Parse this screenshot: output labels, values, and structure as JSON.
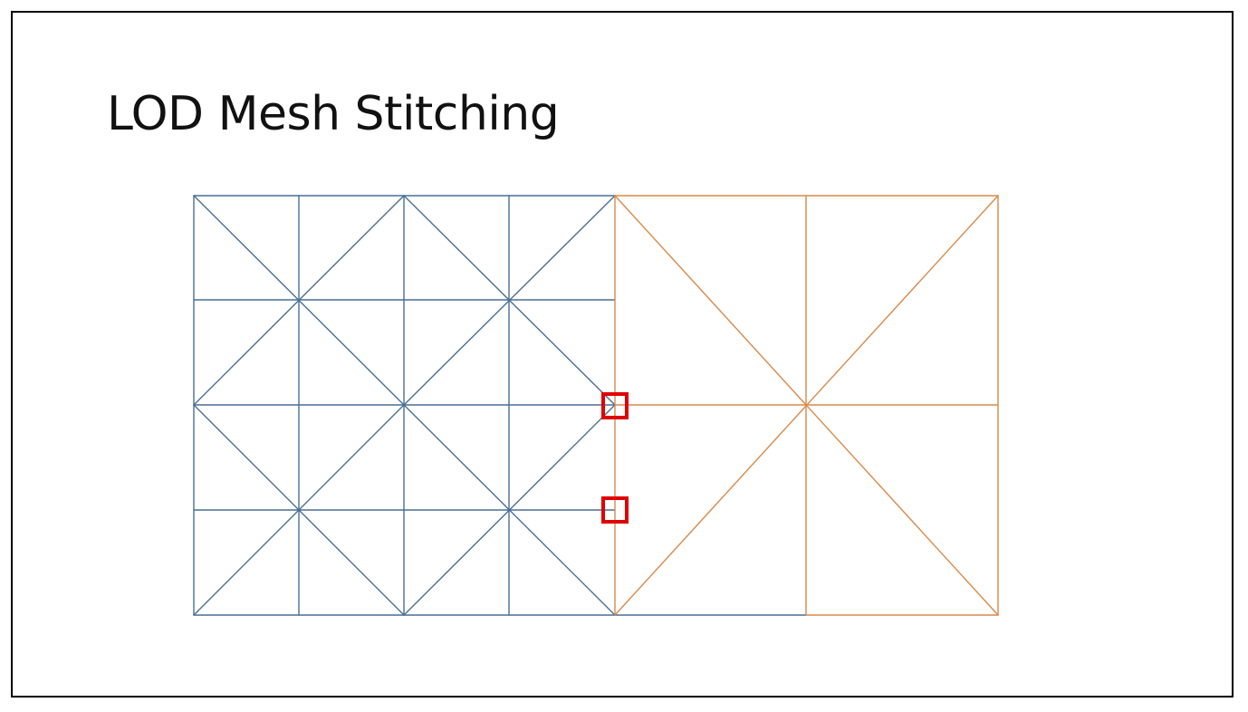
{
  "slide": {
    "title": "LOD Mesh Stitching"
  },
  "colors": {
    "high_lod_mesh": "#4a6f94",
    "low_lod_mesh": "#d98a4a",
    "stitch_highlight": "#e00000",
    "frame_border": "#000000"
  },
  "diagram": {
    "high_lod_patch": {
      "grid_cells": [
        4,
        4
      ],
      "stitch_edge": "right"
    },
    "low_lod_patch": {
      "grid_cells": [
        2,
        2
      ]
    },
    "highlighted_vertices": 2
  }
}
